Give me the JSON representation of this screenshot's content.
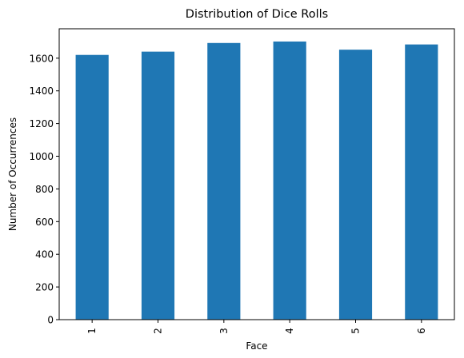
{
  "chart_data": {
    "type": "bar",
    "title": "Distribution of Dice Rolls",
    "xlabel": "Face",
    "ylabel": "Number of Occurrences",
    "categories": [
      "1",
      "2",
      "3",
      "4",
      "5",
      "6"
    ],
    "values": [
      1620,
      1640,
      1693,
      1702,
      1652,
      1684
    ],
    "ylim": [
      0,
      1780
    ],
    "yticks": [
      0,
      200,
      400,
      600,
      800,
      1000,
      1200,
      1400,
      1600
    ],
    "bar_color": "#1f77b4",
    "grid": false,
    "legend": "none"
  }
}
